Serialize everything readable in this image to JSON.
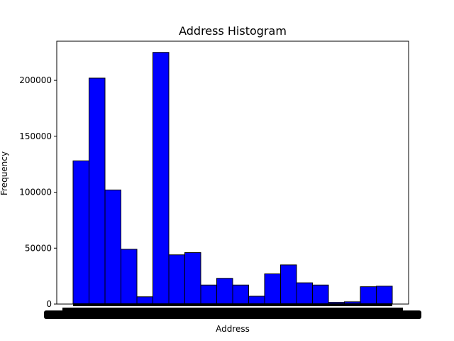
{
  "chart_data": {
    "type": "bar",
    "title": "Address Histogram",
    "xlabel": "Address",
    "ylabel": "Frequency",
    "ylim": [
      0,
      235000
    ],
    "yticks": [
      0,
      50000,
      100000,
      150000,
      200000
    ],
    "ytick_labels": [
      "0",
      "50000",
      "100000",
      "150000",
      "200000"
    ],
    "values": [
      128000,
      202000,
      102000,
      49000,
      6500,
      225000,
      44000,
      46000,
      17000,
      23000,
      17000,
      7000,
      27000,
      35000,
      19000,
      17000,
      1500,
      2000,
      15500,
      16000
    ],
    "bar_color": "#0000ff",
    "edge_color": "#000000",
    "x_tick_labels_note": "dense overlapping tick labels render as an illegible black band",
    "grid": false,
    "legend": "none"
  }
}
